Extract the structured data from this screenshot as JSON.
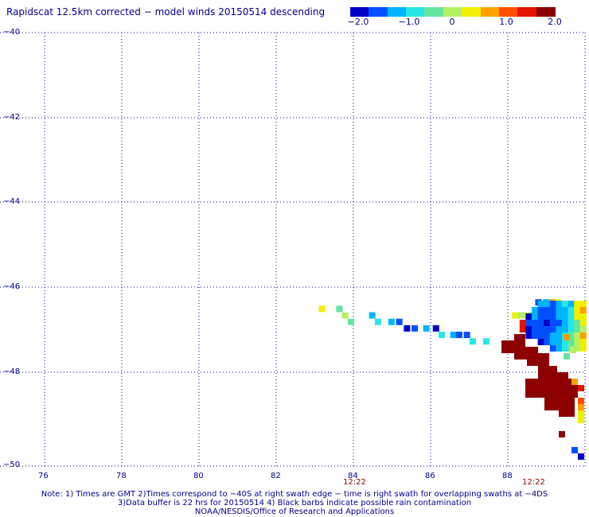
{
  "title": "Rapidscat 12.5km corrected − model winds 20150514 descending",
  "colorbar": {
    "ticks": [
      "−2.0",
      "−1.0",
      "0",
      "1.0",
      "2.0"
    ],
    "colors": [
      "#0000c8",
      "#0050ff",
      "#00b4ff",
      "#28e6e6",
      "#64e6a0",
      "#b4f064",
      "#f0f000",
      "#ffa000",
      "#ff5000",
      "#e61400",
      "#8c0000"
    ]
  },
  "map": {
    "lat_labels": [
      "−40",
      "−42",
      "−44",
      "−46",
      "−48",
      "−50"
    ],
    "lon_labels": [
      "76",
      "78",
      "80",
      "82",
      "84",
      "86",
      "88"
    ],
    "time_labels": [
      "12:22",
      "12:22"
    ]
  },
  "notes": {
    "line1": "Note: 1) Times are GMT 2)Times correspond to −40S at right swath edge − time is right swath for overlapping swaths at −4DS",
    "line2": "3)Data buffer is 22 hrs for 20150514 4) Black barbs indicate possible rain contamination",
    "line3": "NOAA/NESDIS/Office of Research and Applications"
  },
  "wind_pixels": [
    {
      "lon": 83.15,
      "lat": -46.3,
      "color": "#f0f000"
    },
    {
      "lon": 83.6,
      "lat": -46.3,
      "color": "#64e6a0"
    },
    {
      "lon": 83.75,
      "lat": -46.45,
      "color": "#b4f064"
    },
    {
      "lon": 83.9,
      "lat": -46.6,
      "color": "#64e6a0"
    },
    {
      "lon": 84.45,
      "lat": -46.45,
      "color": "#00b4ff"
    },
    {
      "lon": 84.6,
      "lat": -46.6,
      "color": "#28e6e6"
    },
    {
      "lon": 84.95,
      "lat": -46.6,
      "color": "#00b4ff"
    },
    {
      "lon": 85.15,
      "lat": -46.6,
      "color": "#0050ff"
    },
    {
      "lon": 85.35,
      "lat": -46.75,
      "color": "#0000c8"
    },
    {
      "lon": 85.55,
      "lat": -46.75,
      "color": "#0050ff"
    },
    {
      "lon": 85.85,
      "lat": -46.75,
      "color": "#00b4ff"
    },
    {
      "lon": 86.1,
      "lat": -46.75,
      "color": "#0000c8"
    },
    {
      "lon": 86.25,
      "lat": -46.9,
      "color": "#28e6e6"
    },
    {
      "lon": 86.55,
      "lat": -46.9,
      "color": "#00b4ff"
    },
    {
      "lon": 86.7,
      "lat": -46.9,
      "color": "#0050ff"
    },
    {
      "lon": 86.9,
      "lat": -46.9,
      "color": "#0050ff"
    },
    {
      "lon": 87.05,
      "lat": -47.05,
      "color": "#28e6e6"
    },
    {
      "lon": 87.4,
      "lat": -47.05,
      "color": "#28e6e6"
    },
    {
      "lon": 88.75,
      "lat": -46.15,
      "color": "#0050ff"
    },
    {
      "lon": 88.95,
      "lat": -46.15,
      "color": "#00b4ff"
    },
    {
      "lon": 89.1,
      "lat": -46.15,
      "color": "#ffa000"
    },
    {
      "lon": 89.25,
      "lat": -46.15,
      "color": "#f0f000"
    },
    {
      "lon": 88.15,
      "lat": -46.45,
      "color": "#f0f000"
    },
    {
      "lon": 88.3,
      "lat": -46.45,
      "color": "#b4f064"
    },
    {
      "lon": 88.45,
      "lat": -46.45,
      "color": "#b4f064"
    },
    {
      "lon": 88.6,
      "lat": -46.45,
      "color": "#64e6a0"
    },
    {
      "lon": 88.8,
      "lat": -46.35,
      "color": "#0000c8"
    },
    {
      "lon": 88.95,
      "lat": -46.45,
      "color": "#b4f064"
    },
    {
      "lon": 89.1,
      "lat": -46.45,
      "color": "#28e6e6"
    },
    {
      "lon": 89.25,
      "lat": -46.45,
      "color": "#f0f000"
    }
  ],
  "dark_region_color": "#8c0000"
}
